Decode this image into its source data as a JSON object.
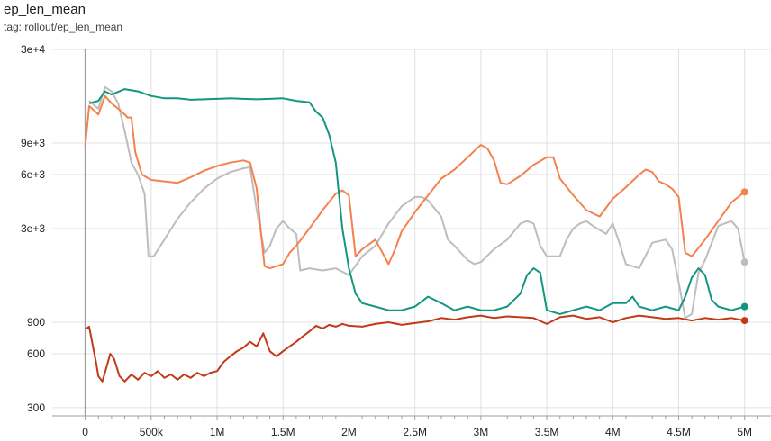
{
  "header": {
    "title": "ep_len_mean",
    "subtitle": "tag: rollout/ep_len_mean"
  },
  "colors": {
    "orange": "#f5814f",
    "gray": "#bdbdbd",
    "teal": "#13967f",
    "red": "#c23a18",
    "grid": "#e0e0e0",
    "axis": "#9e9e9e"
  },
  "chart_data": {
    "type": "line",
    "title": "ep_len_mean",
    "subtitle": "tag: rollout/ep_len_mean",
    "xlabel": "",
    "ylabel": "",
    "yscale": "log",
    "xlim": [
      -250000,
      5200000
    ],
    "ylim": [
      270,
      30000
    ],
    "grid": true,
    "y_ticks": [
      {
        "value": 300,
        "label": "300"
      },
      {
        "value": 600,
        "label": "600"
      },
      {
        "value": 900,
        "label": "900"
      },
      {
        "value": 3000,
        "label": "3e+3"
      },
      {
        "value": 6000,
        "label": "6e+3"
      },
      {
        "value": 9000,
        "label": "9e+3"
      },
      {
        "value": 30000,
        "label": "3e+4"
      }
    ],
    "x_ticks": [
      {
        "value": 0,
        "label": "0"
      },
      {
        "value": 500000,
        "label": "500k"
      },
      {
        "value": 1000000,
        "label": "1M"
      },
      {
        "value": 1500000,
        "label": "1.5M"
      },
      {
        "value": 2000000,
        "label": "2M"
      },
      {
        "value": 2500000,
        "label": "2.5M"
      },
      {
        "value": 3000000,
        "label": "3M"
      },
      {
        "value": 3500000,
        "label": "3.5M"
      },
      {
        "value": 4000000,
        "label": "4M"
      },
      {
        "value": 4500000,
        "label": "4.5M"
      },
      {
        "value": 5000000,
        "label": "5M"
      }
    ],
    "series": [
      {
        "color": "#bdbdbd",
        "points": [
          [
            30000,
            15500
          ],
          [
            100000,
            14000
          ],
          [
            150000,
            18500
          ],
          [
            200000,
            17500
          ],
          [
            250000,
            15000
          ],
          [
            300000,
            10500
          ],
          [
            350000,
            7000
          ],
          [
            400000,
            6000
          ],
          [
            450000,
            4700
          ],
          [
            480000,
            2100
          ],
          [
            520000,
            2100
          ],
          [
            600000,
            2600
          ],
          [
            700000,
            3400
          ],
          [
            800000,
            4200
          ],
          [
            900000,
            5000
          ],
          [
            1000000,
            5700
          ],
          [
            1100000,
            6200
          ],
          [
            1200000,
            6500
          ],
          [
            1250000,
            6600
          ],
          [
            1300000,
            3800
          ],
          [
            1360000,
            2200
          ],
          [
            1400000,
            2400
          ],
          [
            1450000,
            3000
          ],
          [
            1500000,
            3300
          ],
          [
            1550000,
            3000
          ],
          [
            1600000,
            2800
          ],
          [
            1630000,
            1750
          ],
          [
            1700000,
            1800
          ],
          [
            1800000,
            1750
          ],
          [
            1900000,
            1800
          ],
          [
            2000000,
            1650
          ],
          [
            2100000,
            2100
          ],
          [
            2200000,
            2400
          ],
          [
            2300000,
            3200
          ],
          [
            2400000,
            4000
          ],
          [
            2500000,
            4500
          ],
          [
            2550000,
            4500
          ],
          [
            2600000,
            4300
          ],
          [
            2700000,
            3500
          ],
          [
            2750000,
            2600
          ],
          [
            2800000,
            2400
          ],
          [
            2900000,
            2000
          ],
          [
            2950000,
            1900
          ],
          [
            3000000,
            1950
          ],
          [
            3100000,
            2300
          ],
          [
            3200000,
            2600
          ],
          [
            3300000,
            3200
          ],
          [
            3350000,
            3300
          ],
          [
            3400000,
            3200
          ],
          [
            3450000,
            2400
          ],
          [
            3500000,
            2100
          ],
          [
            3600000,
            2100
          ],
          [
            3650000,
            2600
          ],
          [
            3700000,
            3000
          ],
          [
            3750000,
            3200
          ],
          [
            3800000,
            3300
          ],
          [
            3850000,
            3100
          ],
          [
            3950000,
            2800
          ],
          [
            4000000,
            3200
          ],
          [
            4050000,
            2500
          ],
          [
            4100000,
            1900
          ],
          [
            4200000,
            1800
          ],
          [
            4300000,
            2500
          ],
          [
            4400000,
            2600
          ],
          [
            4450000,
            2300
          ],
          [
            4500000,
            1500
          ],
          [
            4550000,
            950
          ],
          [
            4600000,
            1000
          ],
          [
            4650000,
            1700
          ],
          [
            4700000,
            2000
          ],
          [
            4800000,
            3100
          ],
          [
            4900000,
            3300
          ],
          [
            4950000,
            3000
          ],
          [
            5000000,
            1950
          ]
        ]
      },
      {
        "color": "#f5814f",
        "points": [
          [
            0,
            8600
          ],
          [
            30000,
            14500
          ],
          [
            100000,
            13000
          ],
          [
            150000,
            16500
          ],
          [
            200000,
            15000
          ],
          [
            250000,
            14000
          ],
          [
            300000,
            13000
          ],
          [
            320000,
            12500
          ],
          [
            350000,
            12500
          ],
          [
            380000,
            8000
          ],
          [
            430000,
            6000
          ],
          [
            500000,
            5600
          ],
          [
            600000,
            5500
          ],
          [
            700000,
            5400
          ],
          [
            800000,
            5800
          ],
          [
            900000,
            6300
          ],
          [
            1000000,
            6700
          ],
          [
            1100000,
            7000
          ],
          [
            1200000,
            7200
          ],
          [
            1250000,
            7000
          ],
          [
            1300000,
            5000
          ],
          [
            1330000,
            3000
          ],
          [
            1360000,
            1850
          ],
          [
            1400000,
            1800
          ],
          [
            1500000,
            1900
          ],
          [
            1550000,
            2200
          ],
          [
            1600000,
            2400
          ],
          [
            1700000,
            3000
          ],
          [
            1800000,
            3800
          ],
          [
            1900000,
            4700
          ],
          [
            1950000,
            4900
          ],
          [
            2000000,
            4600
          ],
          [
            2050000,
            2100
          ],
          [
            2100000,
            2300
          ],
          [
            2200000,
            2600
          ],
          [
            2300000,
            1900
          ],
          [
            2350000,
            2300
          ],
          [
            2400000,
            2900
          ],
          [
            2500000,
            3700
          ],
          [
            2600000,
            4600
          ],
          [
            2700000,
            5700
          ],
          [
            2800000,
            6400
          ],
          [
            2900000,
            7500
          ],
          [
            3000000,
            8800
          ],
          [
            3050000,
            8400
          ],
          [
            3100000,
            7200
          ],
          [
            3150000,
            5400
          ],
          [
            3200000,
            5300
          ],
          [
            3300000,
            5900
          ],
          [
            3400000,
            6800
          ],
          [
            3500000,
            7500
          ],
          [
            3550000,
            7500
          ],
          [
            3600000,
            5700
          ],
          [
            3700000,
            4600
          ],
          [
            3800000,
            3800
          ],
          [
            3900000,
            3500
          ],
          [
            4000000,
            4400
          ],
          [
            4100000,
            5100
          ],
          [
            4200000,
            6000
          ],
          [
            4250000,
            6400
          ],
          [
            4300000,
            6200
          ],
          [
            4350000,
            5500
          ],
          [
            4400000,
            5300
          ],
          [
            4450000,
            5000
          ],
          [
            4500000,
            4500
          ],
          [
            4550000,
            2200
          ],
          [
            4600000,
            2100
          ],
          [
            4700000,
            2600
          ],
          [
            4800000,
            3300
          ],
          [
            4900000,
            4200
          ],
          [
            5000000,
            4800
          ]
        ]
      },
      {
        "color": "#13967f",
        "points": [
          [
            30000,
            15000
          ],
          [
            100000,
            15500
          ],
          [
            150000,
            17500
          ],
          [
            200000,
            16800
          ],
          [
            300000,
            18000
          ],
          [
            400000,
            17500
          ],
          [
            500000,
            16500
          ],
          [
            600000,
            16000
          ],
          [
            700000,
            16000
          ],
          [
            800000,
            15700
          ],
          [
            900000,
            15800
          ],
          [
            1000000,
            15900
          ],
          [
            1100000,
            16000
          ],
          [
            1200000,
            15900
          ],
          [
            1300000,
            15800
          ],
          [
            1400000,
            15900
          ],
          [
            1500000,
            16000
          ],
          [
            1600000,
            15500
          ],
          [
            1700000,
            15200
          ],
          [
            1750000,
            13500
          ],
          [
            1800000,
            12500
          ],
          [
            1850000,
            10000
          ],
          [
            1900000,
            7000
          ],
          [
            1950000,
            3000
          ],
          [
            2000000,
            1800
          ],
          [
            2050000,
            1300
          ],
          [
            2100000,
            1150
          ],
          [
            2200000,
            1100
          ],
          [
            2300000,
            1050
          ],
          [
            2400000,
            1050
          ],
          [
            2500000,
            1100
          ],
          [
            2600000,
            1250
          ],
          [
            2700000,
            1150
          ],
          [
            2800000,
            1050
          ],
          [
            2900000,
            1100
          ],
          [
            3000000,
            1050
          ],
          [
            3100000,
            1050
          ],
          [
            3200000,
            1100
          ],
          [
            3300000,
            1300
          ],
          [
            3350000,
            1650
          ],
          [
            3400000,
            1800
          ],
          [
            3450000,
            1700
          ],
          [
            3500000,
            1050
          ],
          [
            3600000,
            1000
          ],
          [
            3700000,
            1050
          ],
          [
            3800000,
            1100
          ],
          [
            3900000,
            1050
          ],
          [
            4000000,
            1150
          ],
          [
            4100000,
            1150
          ],
          [
            4150000,
            1250
          ],
          [
            4200000,
            1100
          ],
          [
            4300000,
            1050
          ],
          [
            4400000,
            1100
          ],
          [
            4500000,
            1050
          ],
          [
            4550000,
            1250
          ],
          [
            4600000,
            1600
          ],
          [
            4650000,
            1800
          ],
          [
            4700000,
            1650
          ],
          [
            4750000,
            1200
          ],
          [
            4800000,
            1100
          ],
          [
            4900000,
            1050
          ],
          [
            5000000,
            1100
          ]
        ]
      },
      {
        "color": "#c23a18",
        "points": [
          [
            0,
            820
          ],
          [
            30000,
            850
          ],
          [
            60000,
            650
          ],
          [
            80000,
            550
          ],
          [
            100000,
            450
          ],
          [
            130000,
            420
          ],
          [
            160000,
            500
          ],
          [
            190000,
            600
          ],
          [
            220000,
            560
          ],
          [
            260000,
            450
          ],
          [
            300000,
            420
          ],
          [
            350000,
            460
          ],
          [
            400000,
            430
          ],
          [
            450000,
            470
          ],
          [
            500000,
            450
          ],
          [
            550000,
            480
          ],
          [
            600000,
            440
          ],
          [
            650000,
            460
          ],
          [
            700000,
            430
          ],
          [
            750000,
            460
          ],
          [
            800000,
            440
          ],
          [
            850000,
            470
          ],
          [
            900000,
            450
          ],
          [
            950000,
            470
          ],
          [
            1000000,
            480
          ],
          [
            1050000,
            540
          ],
          [
            1100000,
            580
          ],
          [
            1150000,
            620
          ],
          [
            1200000,
            650
          ],
          [
            1250000,
            700
          ],
          [
            1300000,
            660
          ],
          [
            1350000,
            780
          ],
          [
            1400000,
            620
          ],
          [
            1450000,
            580
          ],
          [
            1500000,
            620
          ],
          [
            1550000,
            660
          ],
          [
            1600000,
            700
          ],
          [
            1650000,
            750
          ],
          [
            1700000,
            800
          ],
          [
            1750000,
            860
          ],
          [
            1800000,
            830
          ],
          [
            1850000,
            870
          ],
          [
            1900000,
            850
          ],
          [
            1950000,
            880
          ],
          [
            2000000,
            860
          ],
          [
            2100000,
            850
          ],
          [
            2200000,
            880
          ],
          [
            2300000,
            900
          ],
          [
            2400000,
            870
          ],
          [
            2500000,
            890
          ],
          [
            2600000,
            910
          ],
          [
            2700000,
            950
          ],
          [
            2800000,
            930
          ],
          [
            2900000,
            960
          ],
          [
            3000000,
            980
          ],
          [
            3100000,
            950
          ],
          [
            3200000,
            970
          ],
          [
            3300000,
            960
          ],
          [
            3400000,
            950
          ],
          [
            3500000,
            880
          ],
          [
            3600000,
            960
          ],
          [
            3700000,
            980
          ],
          [
            3800000,
            940
          ],
          [
            3900000,
            960
          ],
          [
            4000000,
            900
          ],
          [
            4100000,
            950
          ],
          [
            4200000,
            980
          ],
          [
            4300000,
            960
          ],
          [
            4400000,
            940
          ],
          [
            4500000,
            950
          ],
          [
            4600000,
            920
          ],
          [
            4700000,
            950
          ],
          [
            4800000,
            930
          ],
          [
            4900000,
            950
          ],
          [
            5000000,
            920
          ]
        ]
      }
    ]
  }
}
